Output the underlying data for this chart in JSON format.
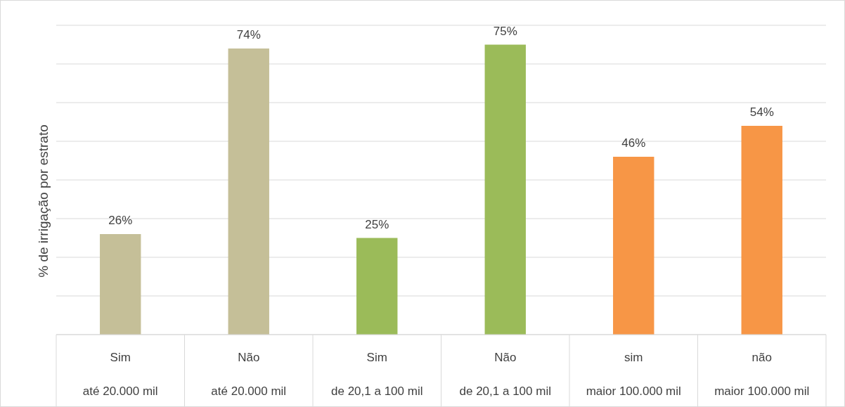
{
  "chart_data": {
    "type": "bar",
    "ylabel": "% de irrigação por estrato",
    "categories": [
      "Sim\naté 20.000 mil",
      "Não\naté 20.000 mil",
      "Sim\nde 20,1 a 100 mil",
      "Não\nde 20,1 a 100 mil",
      "sim\nmaior 100.000 mil",
      "não\nmaior 100.000 mil"
    ],
    "values": [
      26,
      74,
      25,
      75,
      46,
      54
    ],
    "colors": [
      "#c5bf98",
      "#c5bf98",
      "#9bbb59",
      "#9bbb59",
      "#f79646",
      "#f79646"
    ],
    "value_labels": [
      "26%",
      "74%",
      "25%",
      "75%",
      "46%",
      "54%"
    ],
    "ylim": [
      0,
      80
    ],
    "yticks": [
      {
        "value": 0,
        "label": null
      },
      {
        "value": 10,
        "label": null
      },
      {
        "value": 20,
        "label": null
      },
      {
        "value": 30,
        "label": null
      },
      {
        "value": 40,
        "label": null
      },
      {
        "value": 50,
        "label": null
      },
      {
        "value": 60,
        "label": null
      },
      {
        "value": 70,
        "label": null
      },
      {
        "value": 80,
        "label": null
      }
    ],
    "grid": "y",
    "tick_labels": "x"
  }
}
